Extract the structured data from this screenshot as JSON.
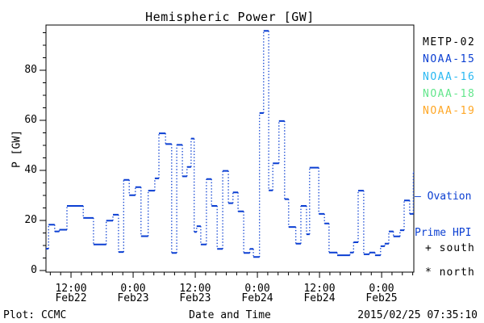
{
  "title": "Hemispheric Power [GW]",
  "y_axis": {
    "label": "P [GW]",
    "tick_values": [
      0,
      20,
      40,
      60,
      80
    ],
    "minor_step": 5,
    "max": 98
  },
  "x_axis": {
    "label": "Date and Time",
    "total_hours": 72,
    "minor_step_hours": 2.0267,
    "ticks": [
      {
        "time": "12:00",
        "date": "Feb22",
        "hour": 4.9
      },
      {
        "time": "0:00",
        "date": "Feb23",
        "hour": 17.05
      },
      {
        "time": "12:00",
        "date": "Feb23",
        "hour": 29.2
      },
      {
        "time": "0:00",
        "date": "Feb24",
        "hour": 41.37
      },
      {
        "time": "12:00",
        "date": "Feb24",
        "hour": 53.53
      },
      {
        "time": "0:00",
        "date": "Feb25",
        "hour": 65.68
      }
    ]
  },
  "legend": {
    "satellites": [
      {
        "name": "METP-02",
        "color": "#000000"
      },
      {
        "name": "NOAA-15",
        "color": "#0b3fd2"
      },
      {
        "name": "NOAA-16",
        "color": "#29b8f2"
      },
      {
        "name": "NOAA-18",
        "color": "#63e68c"
      },
      {
        "name": "NOAA-19",
        "color": "#ffa726"
      }
    ],
    "ovation_line1": "— Ovation",
    "ovation_line2": "Prime HPI",
    "ovation_color": "#0b3fd2"
  },
  "hemisphere_markers": {
    "south": "+ south",
    "north": "* north"
  },
  "footer": {
    "credit": "Plot: CCMC",
    "timestamp": "2015/02/25 07:35:10"
  },
  "chart_data": {
    "type": "line",
    "subtype": "step-post",
    "title": "Hemispheric Power [GW]",
    "xlabel": "Date and Time",
    "ylabel": "P [GW]",
    "ylim": [
      0,
      98
    ],
    "x_range": [
      "2015-02-22 07:35",
      "2015-02-25 07:35"
    ],
    "grid": false,
    "legend_position": "right-outside",
    "series": [
      {
        "name": "Ovation Prime HPI",
        "color": "#0b3fd2",
        "hours_from_start": [
          0,
          0.5,
          1.7,
          2.6,
          4.1,
          7.3,
          9.3,
          11.8,
          13.1,
          14.2,
          15.2,
          16.3,
          17.5,
          18.6,
          20.0,
          21.3,
          22.1,
          23.4,
          24.6,
          25.6,
          26.7,
          27.6,
          28.4,
          29.0,
          29.5,
          30.3,
          31.4,
          32.4,
          33.5,
          34.6,
          35.7,
          36.6,
          37.6,
          38.7,
          39.9,
          40.6,
          41.8,
          42.6,
          43.6,
          44.4,
          45.6,
          46.7,
          47.5,
          48.9,
          49.9,
          51.0,
          51.6,
          53.4,
          54.5,
          55.4,
          57.0,
          59.5,
          60.2,
          61.1,
          62.2,
          63.3,
          64.4,
          65.5,
          66.3,
          67.1,
          68.0,
          69.3,
          70.1,
          71.2,
          71.9
        ],
        "power_gw": [
          8.7,
          18.3,
          15.6,
          16.3,
          25.8,
          21.0,
          10.4,
          19.9,
          22.3,
          7.4,
          36.2,
          30.1,
          33.3,
          13.7,
          31.9,
          36.8,
          54.8,
          50.5,
          7.0,
          50.2,
          37.6,
          41.4,
          52.7,
          15.4,
          17.7,
          10.4,
          36.5,
          25.8,
          8.6,
          39.8,
          26.9,
          31.2,
          23.6,
          7.0,
          8.6,
          5.4,
          62.9,
          95.7,
          32.0,
          42.8,
          59.7,
          28.5,
          17.4,
          10.7,
          25.8,
          14.5,
          41.1,
          22.6,
          18.8,
          7.2,
          6.1,
          7.2,
          11.3,
          31.9,
          6.5,
          7.2,
          6.1,
          9.7,
          10.7,
          15.6,
          13.6,
          16.1,
          28.0,
          22.6,
          39.2
        ]
      }
    ]
  }
}
